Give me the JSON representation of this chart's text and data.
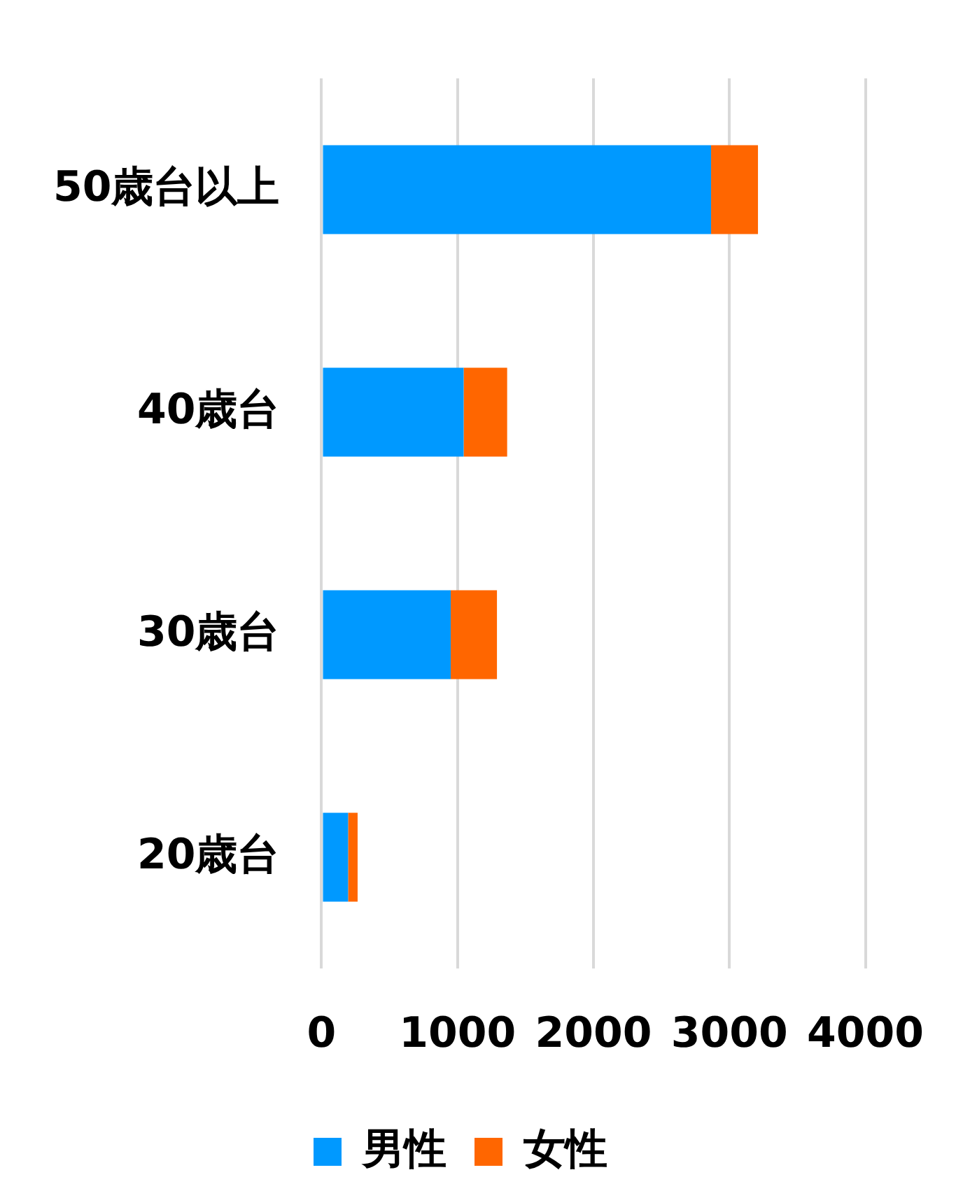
{
  "chart_data": {
    "type": "bar",
    "orientation": "horizontal",
    "stacked": true,
    "categories": [
      "50歳台以上",
      "40歳台",
      "30歳台",
      "20歳台"
    ],
    "series": [
      {
        "name": "男性",
        "color": "#0099ff",
        "values": [
          2865,
          1045,
          950,
          195
        ]
      },
      {
        "name": "女性",
        "color": "#ff6600",
        "values": [
          345,
          320,
          340,
          70
        ]
      }
    ],
    "xlim": [
      0,
      4000
    ],
    "xticks": [
      0,
      1000,
      2000,
      3000,
      4000
    ],
    "grid": "x",
    "legend": "bottom"
  }
}
